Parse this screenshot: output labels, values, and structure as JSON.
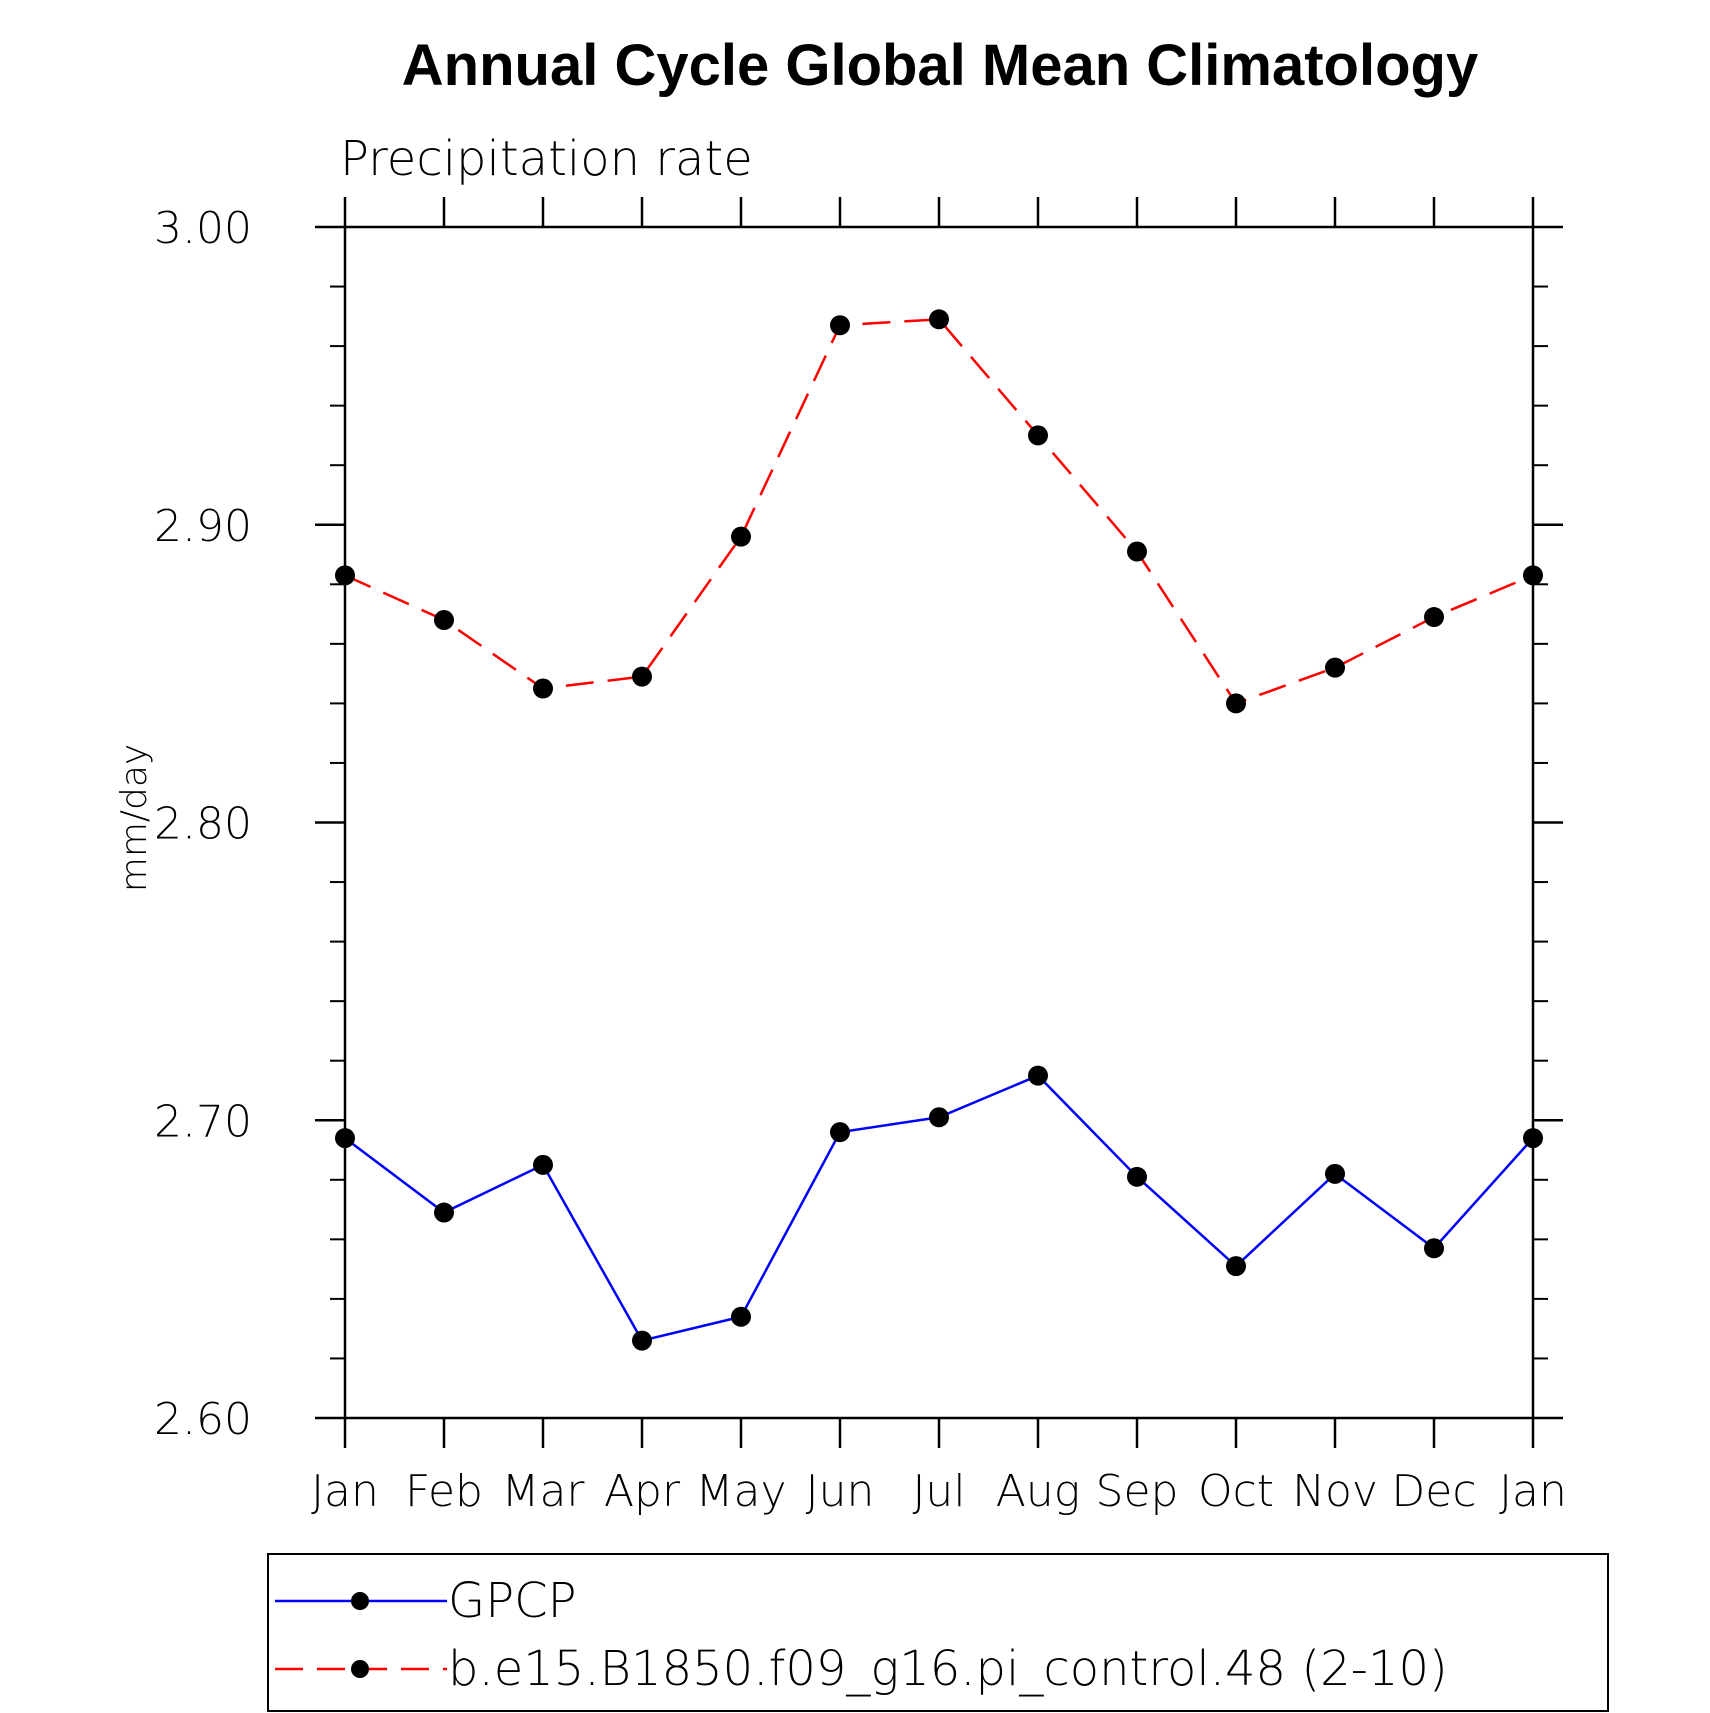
{
  "chart_data": {
    "type": "line",
    "title": "Annual Cycle Global Mean Climatology",
    "subtitle": "Precipitation rate",
    "xlabel": "",
    "ylabel": "mm/day",
    "ylim": [
      2.6,
      3.0
    ],
    "yticks": [
      "2.60",
      "2.70",
      "2.80",
      "2.90",
      "3.00"
    ],
    "ytick_values": [
      2.6,
      2.7,
      2.8,
      2.9,
      3.0
    ],
    "categories": [
      "Jan",
      "Feb",
      "Mar",
      "Apr",
      "May",
      "Jun",
      "Jul",
      "Aug",
      "Sep",
      "Oct",
      "Nov",
      "Dec",
      "Jan"
    ],
    "series": [
      {
        "name": "GPCP",
        "color": "#0000ff",
        "dash": "solid",
        "values": [
          2.694,
          2.669,
          2.685,
          2.626,
          2.634,
          2.696,
          2.701,
          2.715,
          2.681,
          2.651,
          2.682,
          2.657,
          2.694
        ]
      },
      {
        "name": "b.e15.B1850.f09_g16.pi_control.48 (2-10)",
        "color": "#ff0000",
        "dash": "dashed",
        "values": [
          2.883,
          2.868,
          2.845,
          2.849,
          2.896,
          2.967,
          2.969,
          2.93,
          2.891,
          2.84,
          2.852,
          2.869,
          2.883
        ]
      }
    ],
    "legend": "bottom"
  }
}
